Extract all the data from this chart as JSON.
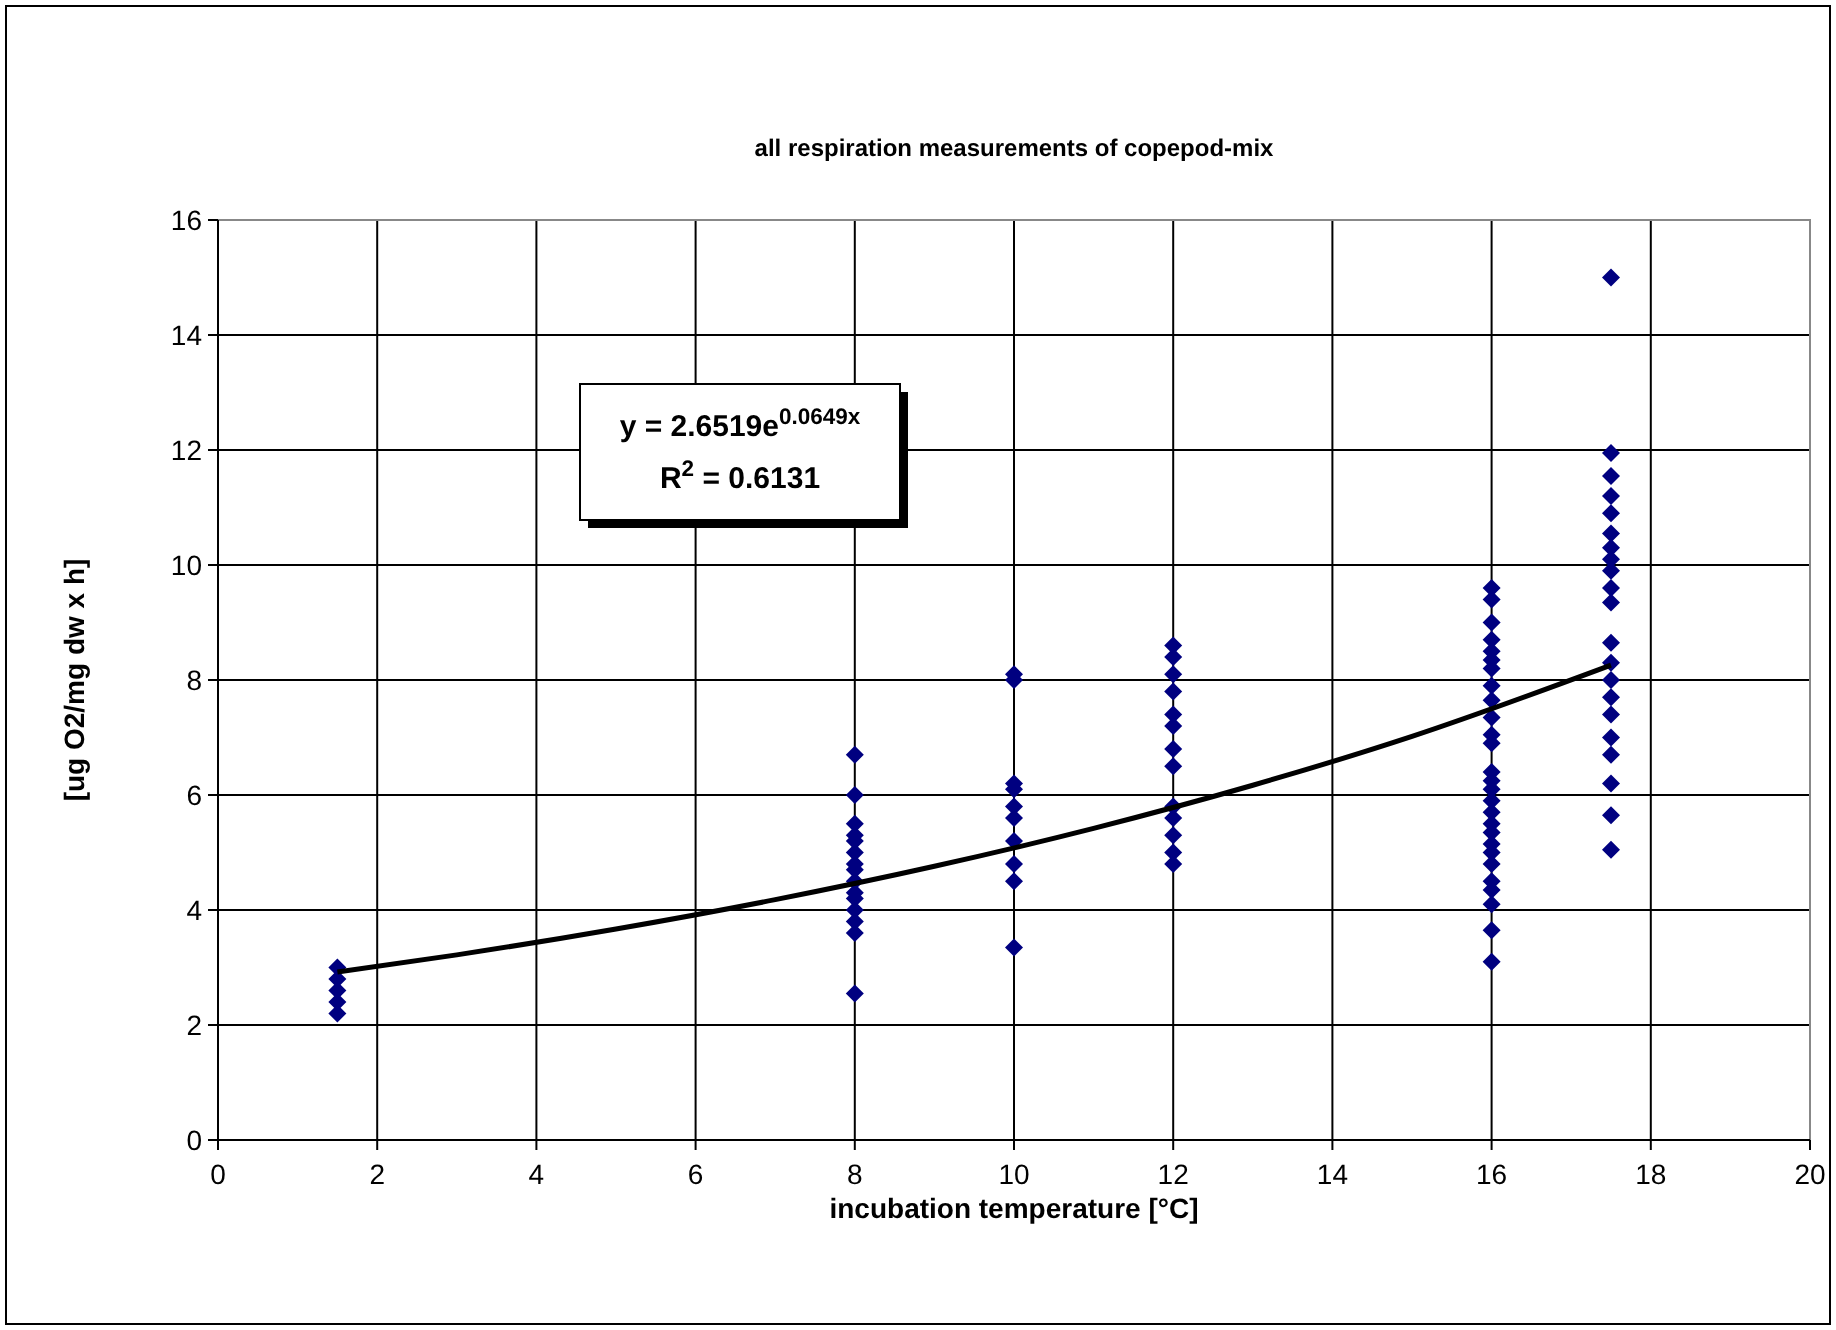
{
  "chart_data": {
    "type": "scatter",
    "title": "all respiration measurements of copepod-mix",
    "xlabel": "incubation temperature [°C]",
    "ylabel": "[ug O2/mg dw x h]",
    "xlim": [
      0,
      20
    ],
    "xticks": [
      0,
      2,
      4,
      6,
      8,
      10,
      12,
      14,
      16,
      18,
      20
    ],
    "ylim": [
      0,
      16
    ],
    "yticks": [
      0,
      2,
      4,
      6,
      8,
      10,
      12,
      14,
      16
    ],
    "grid": true,
    "marker": "diamond",
    "annotations": [
      "y = 2.6519e$^{0.0649x}$",
      "R$^{2}$ = 0.6131"
    ],
    "series": [
      {
        "color": "#000080",
        "x": [
          1.5,
          1.5,
          1.5,
          1.5,
          1.5,
          8,
          8,
          8,
          8,
          8,
          8,
          8,
          8,
          8,
          8,
          8,
          8,
          8,
          8,
          8,
          10,
          10,
          10,
          10,
          10,
          10,
          10,
          10,
          10,
          10,
          12,
          12,
          12,
          12,
          12,
          12,
          12,
          12,
          12,
          12,
          12,
          12,
          12,
          16,
          16,
          16,
          16,
          16,
          16,
          16,
          16,
          16,
          16,
          16,
          16,
          16,
          16,
          16,
          16,
          16,
          16,
          16,
          16,
          16,
          16,
          16,
          16,
          16,
          16,
          16,
          17.5,
          17.5,
          17.5,
          17.5,
          17.5,
          17.5,
          17.5,
          17.5,
          17.5,
          17.5,
          17.5,
          17.5,
          17.5,
          17.5,
          17.5,
          17.5,
          17.5,
          17.5,
          17.5,
          17.5,
          17.5
        ],
        "values": [
          3.0,
          2.8,
          2.6,
          2.4,
          2.2,
          6.7,
          6.0,
          5.5,
          5.3,
          5.2,
          5.0,
          4.8,
          4.7,
          4.5,
          4.3,
          4.2,
          4.0,
          3.8,
          3.6,
          2.55,
          8.1,
          8.0,
          6.2,
          6.1,
          5.8,
          5.6,
          5.2,
          4.8,
          4.5,
          3.35,
          8.6,
          8.4,
          8.1,
          7.8,
          7.4,
          7.2,
          6.8,
          6.5,
          5.8,
          5.6,
          5.3,
          5.0,
          4.8,
          9.6,
          9.4,
          9.0,
          8.7,
          8.5,
          8.35,
          8.2,
          7.9,
          7.65,
          7.35,
          7.05,
          6.9,
          6.4,
          6.25,
          6.1,
          5.9,
          5.7,
          5.5,
          5.35,
          5.15,
          5.0,
          4.8,
          4.5,
          4.35,
          4.1,
          3.65,
          3.1,
          15.0,
          11.95,
          11.55,
          11.2,
          10.9,
          10.55,
          10.3,
          10.1,
          9.9,
          9.6,
          9.35,
          8.65,
          8.3,
          8.0,
          7.7,
          7.4,
          7.0,
          6.7,
          6.2,
          5.65,
          5.05
        ]
      },
      {
        "color": "#000000",
        "type": "line",
        "marker": "none",
        "x": [
          1.5,
          3,
          5,
          7,
          9,
          11,
          13,
          15,
          17.5
        ],
        "values": [
          2.92,
          3.22,
          3.67,
          4.18,
          4.76,
          5.42,
          6.17,
          7.02,
          8.26
        ]
      }
    ]
  }
}
